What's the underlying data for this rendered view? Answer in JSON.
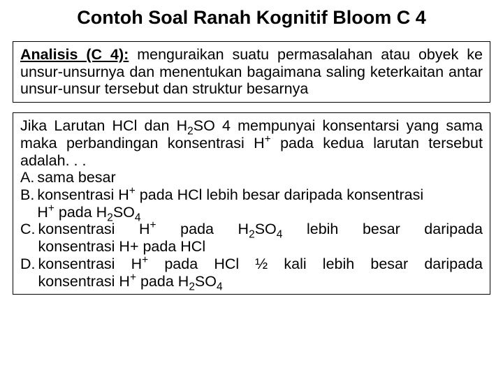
{
  "title": "Contoh Soal Ranah Kognitif Bloom C 4",
  "definition": {
    "heading": "Analisis (C 4):",
    "body": " menguraikan suatu permasalahan atau obyek ke unsur-unsurnya dan menentukan bagaimana saling keterkaitan antar unsur-unsur tersebut dan struktur besarnya"
  },
  "question": {
    "stem_pre": "Jika Larutan HCl dan H",
    "stem_sub1": "2",
    "stem_mid1": "SO 4 mempunyai konsentarsi yang sama maka perbandingan konsentrasi H",
    "stem_sup1": "+",
    "stem_mid2": " pada kedua larutan tersebut adalah. . .",
    "options": {
      "a": {
        "letter": "A.",
        "text": "sama besar"
      },
      "b": {
        "letter": "B.",
        "line1_pre": "konsentrasi H",
        "line1_sup": "+",
        "line1_mid": " pada HCl lebih besar daripada konsentrasi",
        "line2_pre": "H",
        "line2_sup": "+",
        "line2_mid": " pada H",
        "line2_sub1": "2",
        "line2_mid2": "SO",
        "line2_sub2": "4"
      },
      "c": {
        "letter": "C.",
        "line1_pre": "konsentrasi H",
        "line1_sup": "+",
        "line1_mid": " pada H",
        "line1_sub1": "2",
        "line1_mid2": "SO",
        "line1_sub2": "4",
        "line1_end": " lebih besar daripada",
        "line2": "konsentrasi H+ pada HCl"
      },
      "d": {
        "letter": "D.",
        "line1_pre": "konsentrasi H",
        "line1_sup": "+",
        "line1_mid": " pada HCl ½ kali lebih besar daripada",
        "line2_pre": "konsentrasi H",
        "line2_sup": "+",
        "line2_mid": " pada H",
        "line2_sub1": "2",
        "line2_mid2": "SO",
        "line2_sub2": "4"
      }
    }
  },
  "colors": {
    "background": "#ffffff",
    "text": "#000000",
    "border": "#000000"
  },
  "typography": {
    "title_fontsize": 27,
    "body_fontsize": 21.5,
    "font_family": "Arial"
  }
}
